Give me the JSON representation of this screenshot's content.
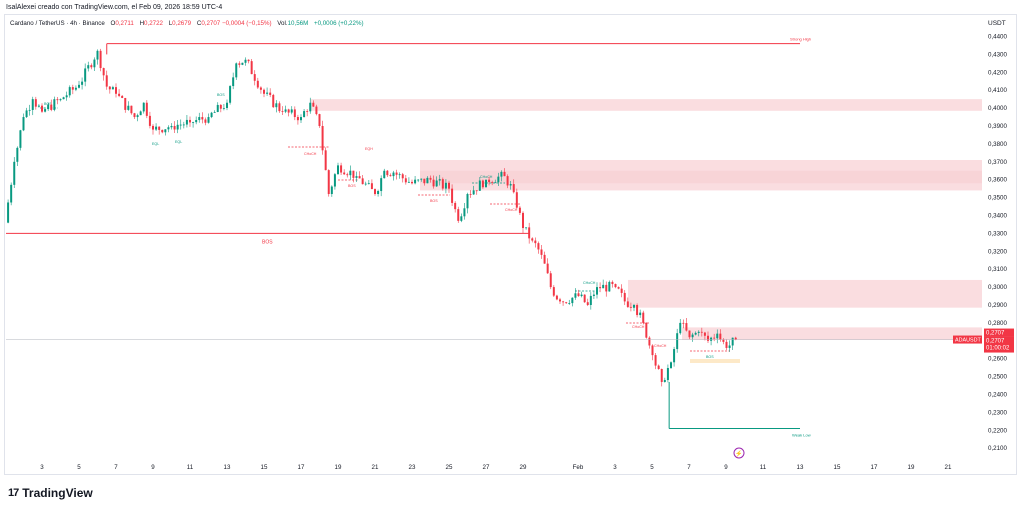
{
  "header": {
    "caption": "IsalAlexei creado con TradingView.com, el Feb 09, 2026 18:59 UTC-4"
  },
  "legend": {
    "symbol": "Cardano / TetherUS · 4h · Binance",
    "open_label": "O",
    "open": "0,2711",
    "high_label": "H",
    "high": "0,2722",
    "low_label": "L",
    "low": "0,2679",
    "close_label": "C",
    "close": "0,2707",
    "change": "−0,0004 (−0,15%)",
    "vol_label": "Vol.",
    "vol": "10,56M",
    "change2": "+0,0006 (+0,22%)"
  },
  "currency": "USDT",
  "logo": {
    "mark": "17",
    "text": "TradingView"
  },
  "colors": {
    "up": "#089981",
    "down": "#f23645",
    "zone": "#f8d2d5",
    "line_red": "#f23645",
    "line_green": "#089981",
    "label_bg": "#f23645"
  },
  "chart_data": {
    "type": "candlestick",
    "symbol": "ADAUSDT",
    "timeframe": "4h",
    "y_ticks": [
      "0,4400",
      "0,4300",
      "0,4200",
      "0,4100",
      "0,4000",
      "0,3900",
      "0,3800",
      "0,3700",
      "0,3600",
      "0,3500",
      "0,3400",
      "0,3300",
      "0,3200",
      "0,3100",
      "0,3000",
      "0,2900",
      "0,2800",
      "0,2707",
      "0,2600",
      "0,2500",
      "0,2400",
      "0,2300",
      "0,2200",
      "0,2100"
    ],
    "ylim": [
      0.2055,
      0.4468
    ],
    "x_ticks": [
      "3",
      "5",
      "7",
      "9",
      "11",
      "13",
      "15",
      "17",
      "19",
      "21",
      "23",
      "25",
      "27",
      "29",
      "Feb",
      "3",
      "5",
      "7",
      "9",
      "11",
      "13",
      "15",
      "17",
      "19",
      "21"
    ],
    "price_path": [
      {
        "date": "Jan 1",
        "price": 0.336
      },
      {
        "date": "Jan 1",
        "price": 0.37
      },
      {
        "date": "Jan 2",
        "price": 0.395
      },
      {
        "date": "Jan 2",
        "price": 0.405
      },
      {
        "date": "Jan 3",
        "price": 0.398
      },
      {
        "date": "Jan 4",
        "price": 0.405
      },
      {
        "date": "Jan 5",
        "price": 0.413
      },
      {
        "date": "Jan 6",
        "price": 0.432
      },
      {
        "date": "Jan 6",
        "price": 0.412
      },
      {
        "date": "Jan 7",
        "price": 0.408
      },
      {
        "date": "Jan 8",
        "price": 0.395
      },
      {
        "date": "Jan 8",
        "price": 0.403
      },
      {
        "date": "Jan 9",
        "price": 0.388
      },
      {
        "date": "Jan 10",
        "price": 0.39
      },
      {
        "date": "Jan 11",
        "price": 0.392
      },
      {
        "date": "Jan 12",
        "price": 0.395
      },
      {
        "date": "Jan 13",
        "price": 0.403
      },
      {
        "date": "Jan 13",
        "price": 0.425
      },
      {
        "date": "Jan 14",
        "price": 0.427
      },
      {
        "date": "Jan 15",
        "price": 0.408
      },
      {
        "date": "Jan 16",
        "price": 0.398
      },
      {
        "date": "Jan 17",
        "price": 0.395
      },
      {
        "date": "Jan 17",
        "price": 0.403
      },
      {
        "date": "Jan 18",
        "price": 0.39
      },
      {
        "date": "Jan 18",
        "price": 0.352
      },
      {
        "date": "Jan 19",
        "price": 0.368
      },
      {
        "date": "Jan 20",
        "price": 0.362
      },
      {
        "date": "Jan 21",
        "price": 0.352
      },
      {
        "date": "Jan 21",
        "price": 0.365
      },
      {
        "date": "Jan 22",
        "price": 0.364
      },
      {
        "date": "Jan 23",
        "price": 0.358
      },
      {
        "date": "Jan 24",
        "price": 0.36
      },
      {
        "date": "Jan 25",
        "price": 0.355
      },
      {
        "date": "Jan 25",
        "price": 0.337
      },
      {
        "date": "Jan 26",
        "price": 0.352
      },
      {
        "date": "Jan 27",
        "price": 0.36
      },
      {
        "date": "Jan 28",
        "price": 0.362
      },
      {
        "date": "Jan 28",
        "price": 0.353
      },
      {
        "date": "Jan 29",
        "price": 0.333
      },
      {
        "date": "Jan 29",
        "price": 0.326
      },
      {
        "date": "Jan 30",
        "price": 0.318
      },
      {
        "date": "Jan 30",
        "price": 0.3
      },
      {
        "date": "Jan 31",
        "price": 0.292
      },
      {
        "date": "Feb 1",
        "price": 0.295
      },
      {
        "date": "Feb 1",
        "price": 0.29
      },
      {
        "date": "Feb 2",
        "price": 0.3
      },
      {
        "date": "Feb 3",
        "price": 0.3
      },
      {
        "date": "Feb 3",
        "price": 0.292
      },
      {
        "date": "Feb 4",
        "price": 0.29
      },
      {
        "date": "Feb 4",
        "price": 0.28
      },
      {
        "date": "Feb 5",
        "price": 0.262
      },
      {
        "date": "Feb 5",
        "price": 0.247
      },
      {
        "date": "Feb 6",
        "price": 0.258
      },
      {
        "date": "Feb 6",
        "price": 0.28
      },
      {
        "date": "Feb 7",
        "price": 0.272
      },
      {
        "date": "Feb 7",
        "price": 0.275
      },
      {
        "date": "Feb 8",
        "price": 0.27
      },
      {
        "date": "Feb 8",
        "price": 0.274
      },
      {
        "date": "Feb 9",
        "price": 0.266
      },
      {
        "date": "Feb 9",
        "price": 0.2707
      }
    ],
    "current_price": {
      "symbol": "ADAUSDT",
      "price": "0,2707",
      "countdown": "01:00:02"
    },
    "zones": [
      {
        "from": 0.3985,
        "to": 0.405
      },
      {
        "from": 0.354,
        "to": 0.371
      },
      {
        "from": 0.358,
        "to": 0.365
      },
      {
        "from": 0.2885,
        "to": 0.304
      },
      {
        "from": 0.2705,
        "to": 0.2775
      }
    ],
    "annotations": {
      "strong_high": {
        "label": "Strong High",
        "price": 0.436,
        "start": "Jan 6"
      },
      "weak_low": {
        "label": "Weak Low",
        "price": 0.221,
        "start": "Feb 5"
      },
      "bos_line": {
        "label": "BOS",
        "price": 0.33
      },
      "small_labels": [
        "BOS",
        "BOS",
        "EQL",
        "EQL",
        "CHoCH",
        "EQH",
        "BOS",
        "BOS",
        "CHoCH",
        "CHoCH",
        "CHoCH",
        "CHoCH",
        "BOS",
        "CHoCH"
      ]
    }
  }
}
